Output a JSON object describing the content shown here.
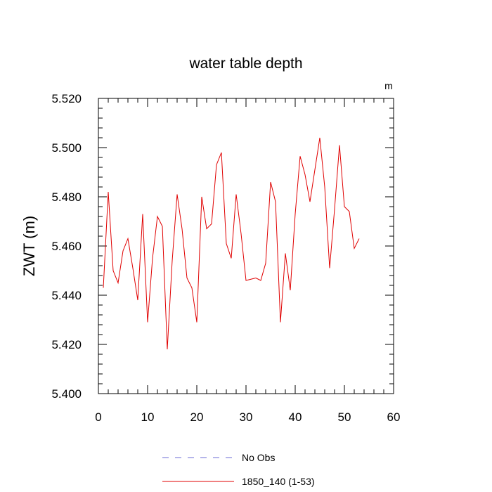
{
  "chart_data": {
    "type": "line",
    "title": "water table depth",
    "units_label": "m",
    "ylabel": "ZWT  (m)",
    "xlabel": "",
    "xlim": [
      0,
      60
    ],
    "ylim": [
      5.4,
      5.52
    ],
    "x_ticks": [
      0,
      10,
      20,
      30,
      40,
      50,
      60
    ],
    "y_ticks": [
      5.4,
      5.42,
      5.44,
      5.46,
      5.48,
      5.5,
      5.52
    ],
    "x_tick_labels": [
      "0",
      "10",
      "20",
      "30",
      "40",
      "50",
      "60"
    ],
    "y_tick_labels": [
      "5.400",
      "5.420",
      "5.440",
      "5.460",
      "5.480",
      "5.500",
      "5.520"
    ],
    "grid": false,
    "legend_position": "bottom-center",
    "series": [
      {
        "name": "No Obs",
        "color": "#6b6bd6",
        "style": "dashed",
        "x": [],
        "values": []
      },
      {
        "name": "1850_140 (1-53)",
        "color": "#e00000",
        "style": "solid",
        "x": [
          1,
          2,
          3,
          4,
          5,
          6,
          7,
          8,
          9,
          10,
          11,
          12,
          13,
          14,
          15,
          16,
          17,
          18,
          19,
          20,
          21,
          22,
          23,
          24,
          25,
          26,
          27,
          28,
          29,
          30,
          31,
          32,
          33,
          34,
          35,
          36,
          37,
          38,
          39,
          40,
          41,
          42,
          43,
          44,
          45,
          46,
          47,
          48,
          49,
          50,
          51,
          52,
          53
        ],
        "values": [
          5.443,
          5.482,
          5.45,
          5.445,
          5.458,
          5.463,
          5.451,
          5.438,
          5.473,
          5.429,
          5.455,
          5.472,
          5.468,
          5.418,
          5.454,
          5.481,
          5.467,
          5.447,
          5.443,
          5.429,
          5.48,
          5.467,
          5.469,
          5.493,
          5.498,
          5.461,
          5.455,
          5.481,
          5.465,
          5.446,
          5.4465,
          5.447,
          5.446,
          5.453,
          5.486,
          5.478,
          5.429,
          5.457,
          5.442,
          5.473,
          5.4965,
          5.489,
          5.478,
          5.491,
          5.504,
          5.484,
          5.451,
          5.475,
          5.501,
          5.476,
          5.474,
          5.459,
          5.463
        ]
      }
    ]
  }
}
